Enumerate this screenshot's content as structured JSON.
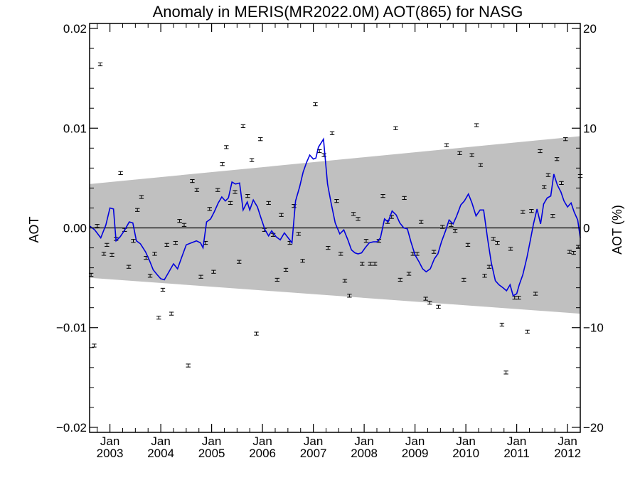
{
  "chart_data": {
    "type": "scatter",
    "title": "Anomaly in MERIS(MR2022.0M) AOT(865) for NASG",
    "ylabel": "AOT",
    "ylabel_right": "AOT (%)",
    "xlabel": "",
    "xlim": [
      2002.6,
      2012.25
    ],
    "ylim": [
      -0.0205,
      0.0205
    ],
    "ylim_right": [
      -20.5,
      20.5
    ],
    "grid": false,
    "x_ticks": [
      {
        "value": 2003,
        "label_top": "Jan",
        "label_bottom": "2003"
      },
      {
        "value": 2004,
        "label_top": "Jan",
        "label_bottom": "2004"
      },
      {
        "value": 2005,
        "label_top": "Jan",
        "label_bottom": "2005"
      },
      {
        "value": 2006,
        "label_top": "Jan",
        "label_bottom": "2006"
      },
      {
        "value": 2007,
        "label_top": "Jan",
        "label_bottom": "2007"
      },
      {
        "value": 2008,
        "label_top": "Jan",
        "label_bottom": "2008"
      },
      {
        "value": 2009,
        "label_top": "Jan",
        "label_bottom": "2009"
      },
      {
        "value": 2010,
        "label_top": "Jan",
        "label_bottom": "2010"
      },
      {
        "value": 2011,
        "label_top": "Jan",
        "label_bottom": "2011"
      },
      {
        "value": 2012,
        "label_top": "Jan",
        "label_bottom": "2012"
      }
    ],
    "y_ticks_left": [
      {
        "value": 0.02,
        "label": "0.02"
      },
      {
        "value": 0.01,
        "label": "0.01"
      },
      {
        "value": 0.0,
        "label": "0.00"
      },
      {
        "value": -0.01,
        "label": "−0.01"
      },
      {
        "value": -0.02,
        "label": "−0.02"
      }
    ],
    "y_ticks_right": [
      {
        "value": 20,
        "label": "20"
      },
      {
        "value": 10,
        "label": "10"
      },
      {
        "value": 0,
        "label": "0"
      },
      {
        "value": -10,
        "label": "−10"
      },
      {
        "value": -20,
        "label": "−20"
      }
    ],
    "reference_line": 0.0,
    "band": {
      "color": "#c0c0c0",
      "x": [
        2002.6,
        2012.25
      ],
      "upper": [
        0.0044,
        0.0092
      ],
      "lower": [
        -0.005,
        -0.0086
      ]
    },
    "series": [
      {
        "type": "scatter_errorbar",
        "color": "#000000",
        "error": 0.00015,
        "points": [
          [
            2002.63,
            -0.0047
          ],
          [
            2002.69,
            -0.0118
          ],
          [
            2002.75,
            0.0002
          ],
          [
            2002.81,
            0.0164
          ],
          [
            2002.88,
            -0.0026
          ],
          [
            2002.94,
            -0.0017
          ],
          [
            2003.04,
            -0.0027
          ],
          [
            2003.12,
            -0.0011
          ],
          [
            2003.21,
            0.0055
          ],
          [
            2003.29,
            -0.0002
          ],
          [
            2003.37,
            -0.0039
          ],
          [
            2003.46,
            -0.0013
          ],
          [
            2003.54,
            0.0018
          ],
          [
            2003.62,
            0.0031
          ],
          [
            2003.71,
            -0.003
          ],
          [
            2003.79,
            -0.0048
          ],
          [
            2003.88,
            -0.0026
          ],
          [
            2003.96,
            -0.009
          ],
          [
            2004.04,
            -0.0062
          ],
          [
            2004.12,
            -0.0017
          ],
          [
            2004.21,
            -0.0086
          ],
          [
            2004.29,
            -0.0015
          ],
          [
            2004.37,
            0.0007
          ],
          [
            2004.46,
            0.0003
          ],
          [
            2004.54,
            -0.0138
          ],
          [
            2004.62,
            0.0047
          ],
          [
            2004.71,
            0.0038
          ],
          [
            2004.79,
            -0.0049
          ],
          [
            2004.88,
            -0.0015
          ],
          [
            2004.96,
            0.0019
          ],
          [
            2005.04,
            -0.0044
          ],
          [
            2005.12,
            0.0038
          ],
          [
            2005.21,
            0.0064
          ],
          [
            2005.29,
            0.0081
          ],
          [
            2005.37,
            0.0025
          ],
          [
            2005.46,
            0.0036
          ],
          [
            2005.54,
            -0.0034
          ],
          [
            2005.62,
            0.0102
          ],
          [
            2005.71,
            0.0032
          ],
          [
            2005.79,
            0.0068
          ],
          [
            2005.88,
            -0.0106
          ],
          [
            2005.96,
            0.0089
          ],
          [
            2006.04,
            -0.0002
          ],
          [
            2006.12,
            0.0025
          ],
          [
            2006.21,
            -0.0007
          ],
          [
            2006.29,
            -0.0052
          ],
          [
            2006.37,
            0.0013
          ],
          [
            2006.46,
            -0.0042
          ],
          [
            2006.54,
            -0.0015
          ],
          [
            2006.62,
            0.0022
          ],
          [
            2006.71,
            -0.0006
          ],
          [
            2006.79,
            -0.0033
          ],
          [
            2007.04,
            0.0124
          ],
          [
            2007.12,
            0.0077
          ],
          [
            2007.21,
            0.0073
          ],
          [
            2007.29,
            -0.002
          ],
          [
            2007.37,
            0.0095
          ],
          [
            2007.46,
            0.0027
          ],
          [
            2007.54,
            -0.0026
          ],
          [
            2007.62,
            -0.0053
          ],
          [
            2007.71,
            -0.0068
          ],
          [
            2007.79,
            0.0014
          ],
          [
            2007.88,
            0.0009
          ],
          [
            2007.96,
            -0.0036
          ],
          [
            2008.04,
            -0.0013
          ],
          [
            2008.12,
            -0.0036
          ],
          [
            2008.21,
            -0.0036
          ],
          [
            2008.29,
            -0.0013
          ],
          [
            2008.37,
            0.0032
          ],
          [
            2008.46,
            0.0006
          ],
          [
            2008.54,
            0.0011
          ],
          [
            2008.62,
            0.01
          ],
          [
            2008.71,
            -0.0052
          ],
          [
            2008.79,
            0.003
          ],
          [
            2008.88,
            -0.0046
          ],
          [
            2008.96,
            -0.0026
          ],
          [
            2009.04,
            -0.0026
          ],
          [
            2009.12,
            0.0006
          ],
          [
            2009.21,
            -0.0071
          ],
          [
            2009.29,
            -0.0075
          ],
          [
            2009.37,
            -0.0024
          ],
          [
            2009.46,
            -0.0079
          ],
          [
            2009.54,
            0.0001
          ],
          [
            2009.62,
            0.0083
          ],
          [
            2009.71,
            0.0003
          ],
          [
            2009.79,
            -0.0003
          ],
          [
            2009.88,
            0.0075
          ],
          [
            2009.96,
            -0.0052
          ],
          [
            2010.04,
            -0.0017
          ],
          [
            2010.12,
            0.0073
          ],
          [
            2010.21,
            0.0103
          ],
          [
            2010.29,
            0.0063
          ],
          [
            2010.37,
            -0.0048
          ],
          [
            2010.46,
            -0.0039
          ],
          [
            2010.54,
            -0.0011
          ],
          [
            2010.62,
            -0.0015
          ],
          [
            2010.71,
            -0.0097
          ],
          [
            2010.79,
            -0.0145
          ],
          [
            2010.88,
            -0.0021
          ],
          [
            2010.96,
            -0.007
          ],
          [
            2011.04,
            -0.007
          ],
          [
            2011.12,
            0.0016
          ],
          [
            2011.21,
            -0.0104
          ],
          [
            2011.29,
            0.0017
          ],
          [
            2011.37,
            -0.0066
          ],
          [
            2011.46,
            0.0077
          ],
          [
            2011.54,
            0.0041
          ],
          [
            2011.62,
            0.0053
          ],
          [
            2011.71,
            0.0012
          ],
          [
            2011.79,
            0.0069
          ],
          [
            2011.88,
            0.0045
          ],
          [
            2011.96,
            0.0089
          ],
          [
            2012.04,
            -0.0024
          ],
          [
            2012.12,
            -0.0025
          ],
          [
            2012.21,
            -0.0019
          ],
          [
            2012.25,
            0.0052
          ]
        ]
      },
      {
        "type": "line",
        "color": "#0000dd",
        "points": [
          [
            2002.6,
            0.0002
          ],
          [
            2002.7,
            -0.0002
          ],
          [
            2002.82,
            -0.001
          ],
          [
            2002.92,
            0.0003
          ],
          [
            2003.0,
            0.002
          ],
          [
            2003.07,
            0.0019
          ],
          [
            2003.12,
            -0.0013
          ],
          [
            2003.2,
            -0.0009
          ],
          [
            2003.28,
            -0.0003
          ],
          [
            2003.38,
            0.0006
          ],
          [
            2003.45,
            0.0005
          ],
          [
            2003.52,
            -0.0013
          ],
          [
            2003.6,
            -0.0016
          ],
          [
            2003.7,
            -0.0024
          ],
          [
            2003.78,
            -0.0033
          ],
          [
            2003.85,
            -0.0042
          ],
          [
            2003.93,
            -0.0047
          ],
          [
            2004.0,
            -0.0051
          ],
          [
            2004.07,
            -0.0052
          ],
          [
            2004.15,
            -0.0045
          ],
          [
            2004.25,
            -0.0036
          ],
          [
            2004.33,
            -0.0041
          ],
          [
            2004.4,
            -0.0031
          ],
          [
            2004.5,
            -0.0017
          ],
          [
            2004.6,
            -0.0015
          ],
          [
            2004.7,
            -0.0013
          ],
          [
            2004.78,
            -0.0015
          ],
          [
            2004.83,
            -0.002
          ],
          [
            2004.9,
            0.0006
          ],
          [
            2004.98,
            0.0009
          ],
          [
            2005.05,
            0.0016
          ],
          [
            2005.13,
            0.0025
          ],
          [
            2005.2,
            0.0031
          ],
          [
            2005.27,
            0.0027
          ],
          [
            2005.33,
            0.003
          ],
          [
            2005.4,
            0.0046
          ],
          [
            2005.47,
            0.0044
          ],
          [
            2005.55,
            0.0045
          ],
          [
            2005.62,
            0.0018
          ],
          [
            2005.7,
            0.0026
          ],
          [
            2005.75,
            0.0018
          ],
          [
            2005.82,
            0.0028
          ],
          [
            2005.9,
            0.0021
          ],
          [
            2005.97,
            0.001
          ],
          [
            2006.05,
            -0.0002
          ],
          [
            2006.12,
            -0.0008
          ],
          [
            2006.18,
            -0.0003
          ],
          [
            2006.27,
            -0.0009
          ],
          [
            2006.35,
            -0.0012
          ],
          [
            2006.43,
            -0.0005
          ],
          [
            2006.52,
            -0.0011
          ],
          [
            2006.58,
            -0.0015
          ],
          [
            2006.65,
            0.0027
          ],
          [
            2006.73,
            0.0041
          ],
          [
            2006.8,
            0.0056
          ],
          [
            2006.87,
            0.0066
          ],
          [
            2006.93,
            0.0073
          ],
          [
            2007.0,
            0.0069
          ],
          [
            2007.05,
            0.007
          ],
          [
            2007.1,
            0.0081
          ],
          [
            2007.2,
            0.0089
          ],
          [
            2007.28,
            0.0044
          ],
          [
            2007.35,
            0.0025
          ],
          [
            2007.43,
            0.0005
          ],
          [
            2007.52,
            -0.0006
          ],
          [
            2007.6,
            -0.0002
          ],
          [
            2007.68,
            -0.0012
          ],
          [
            2007.75,
            -0.0022
          ],
          [
            2007.82,
            -0.0025
          ],
          [
            2007.88,
            -0.0026
          ],
          [
            2007.95,
            -0.0025
          ],
          [
            2008.02,
            -0.002
          ],
          [
            2008.1,
            -0.0015
          ],
          [
            2008.18,
            -0.0014
          ],
          [
            2008.25,
            -0.0014
          ],
          [
            2008.32,
            -0.001
          ],
          [
            2008.4,
            0.0009
          ],
          [
            2008.47,
            0.0006
          ],
          [
            2008.55,
            0.0017
          ],
          [
            2008.63,
            0.0013
          ],
          [
            2008.7,
            0.0005
          ],
          [
            2008.78,
            0.0
          ],
          [
            2008.85,
            -0.0001
          ],
          [
            2008.92,
            -0.0014
          ],
          [
            2009.0,
            -0.0027
          ],
          [
            2009.08,
            -0.0034
          ],
          [
            2009.15,
            -0.0041
          ],
          [
            2009.22,
            -0.0044
          ],
          [
            2009.3,
            -0.0041
          ],
          [
            2009.38,
            -0.0031
          ],
          [
            2009.45,
            -0.0026
          ],
          [
            2009.52,
            -0.0014
          ],
          [
            2009.6,
            -0.0003
          ],
          [
            2009.67,
            0.0008
          ],
          [
            2009.75,
            0.0004
          ],
          [
            2009.82,
            0.0012
          ],
          [
            2009.9,
            0.0023
          ],
          [
            2009.97,
            0.0027
          ],
          [
            2010.05,
            0.0034
          ],
          [
            2010.12,
            0.0025
          ],
          [
            2010.2,
            0.0012
          ],
          [
            2010.28,
            0.0018
          ],
          [
            2010.35,
            0.0018
          ],
          [
            2010.43,
            -0.0012
          ],
          [
            2010.5,
            -0.0035
          ],
          [
            2010.58,
            -0.0053
          ],
          [
            2010.65,
            -0.0057
          ],
          [
            2010.73,
            -0.006
          ],
          [
            2010.8,
            -0.0063
          ],
          [
            2010.87,
            -0.0057
          ],
          [
            2010.93,
            -0.0068
          ],
          [
            2011.0,
            -0.0066
          ],
          [
            2011.05,
            -0.0057
          ],
          [
            2011.12,
            -0.0047
          ],
          [
            2011.2,
            -0.003
          ],
          [
            2011.27,
            -0.0012
          ],
          [
            2011.33,
            0.0004
          ],
          [
            2011.4,
            0.0019
          ],
          [
            2011.47,
            0.0004
          ],
          [
            2011.53,
            0.0024
          ],
          [
            2011.6,
            0.003
          ],
          [
            2011.67,
            0.0032
          ],
          [
            2011.73,
            0.0054
          ],
          [
            2011.8,
            0.0043
          ],
          [
            2011.87,
            0.0036
          ],
          [
            2011.93,
            0.0027
          ],
          [
            2012.0,
            0.0021
          ],
          [
            2012.07,
            0.0025
          ],
          [
            2012.13,
            0.0016
          ],
          [
            2012.2,
            0.0008
          ],
          [
            2012.25,
            -0.001
          ]
        ]
      }
    ]
  }
}
